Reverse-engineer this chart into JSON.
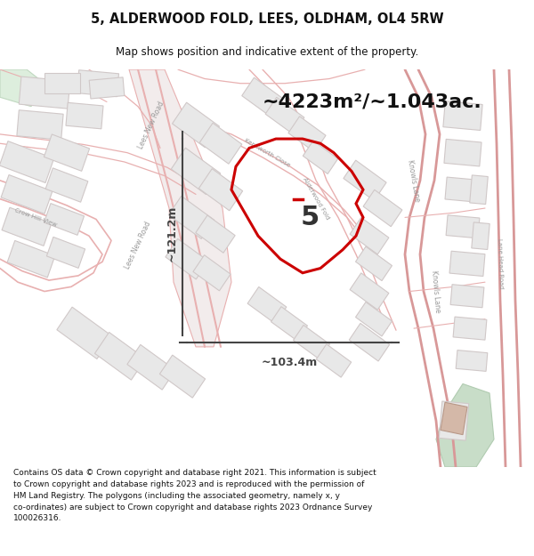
{
  "title_line1": "5, ALDERWOOD FOLD, LEES, OLDHAM, OL4 5RW",
  "title_line2": "Map shows position and indicative extent of the property.",
  "area_text": "~4223m²/~1.043ac.",
  "label_number": "5",
  "dim_horizontal": "~103.4m",
  "dim_vertical": "~121.2m",
  "footer_text": "Contains OS data © Crown copyright and database right 2021. This information is subject to Crown copyright and database rights 2023 and is reproduced with the permission of HM Land Registry. The polygons (including the associated geometry, namely x, y co-ordinates) are subject to Crown copyright and database rights 2023 Ordnance Survey 100026316.",
  "bg_color": "#ffffff",
  "map_bg": "#faf8f8",
  "road_color": "#e8b0b0",
  "road_fill": "#f5eded",
  "building_fill": "#e8e8e8",
  "building_stroke": "#d0c8c8",
  "green_fill": "#ddeedd",
  "green_stroke": "#c0d8c0",
  "highlight_stroke": "#cc0000",
  "dim_line_color": "#444444",
  "text_color": "#111111",
  "footer_color": "#111111",
  "road_label_color": "#999999"
}
